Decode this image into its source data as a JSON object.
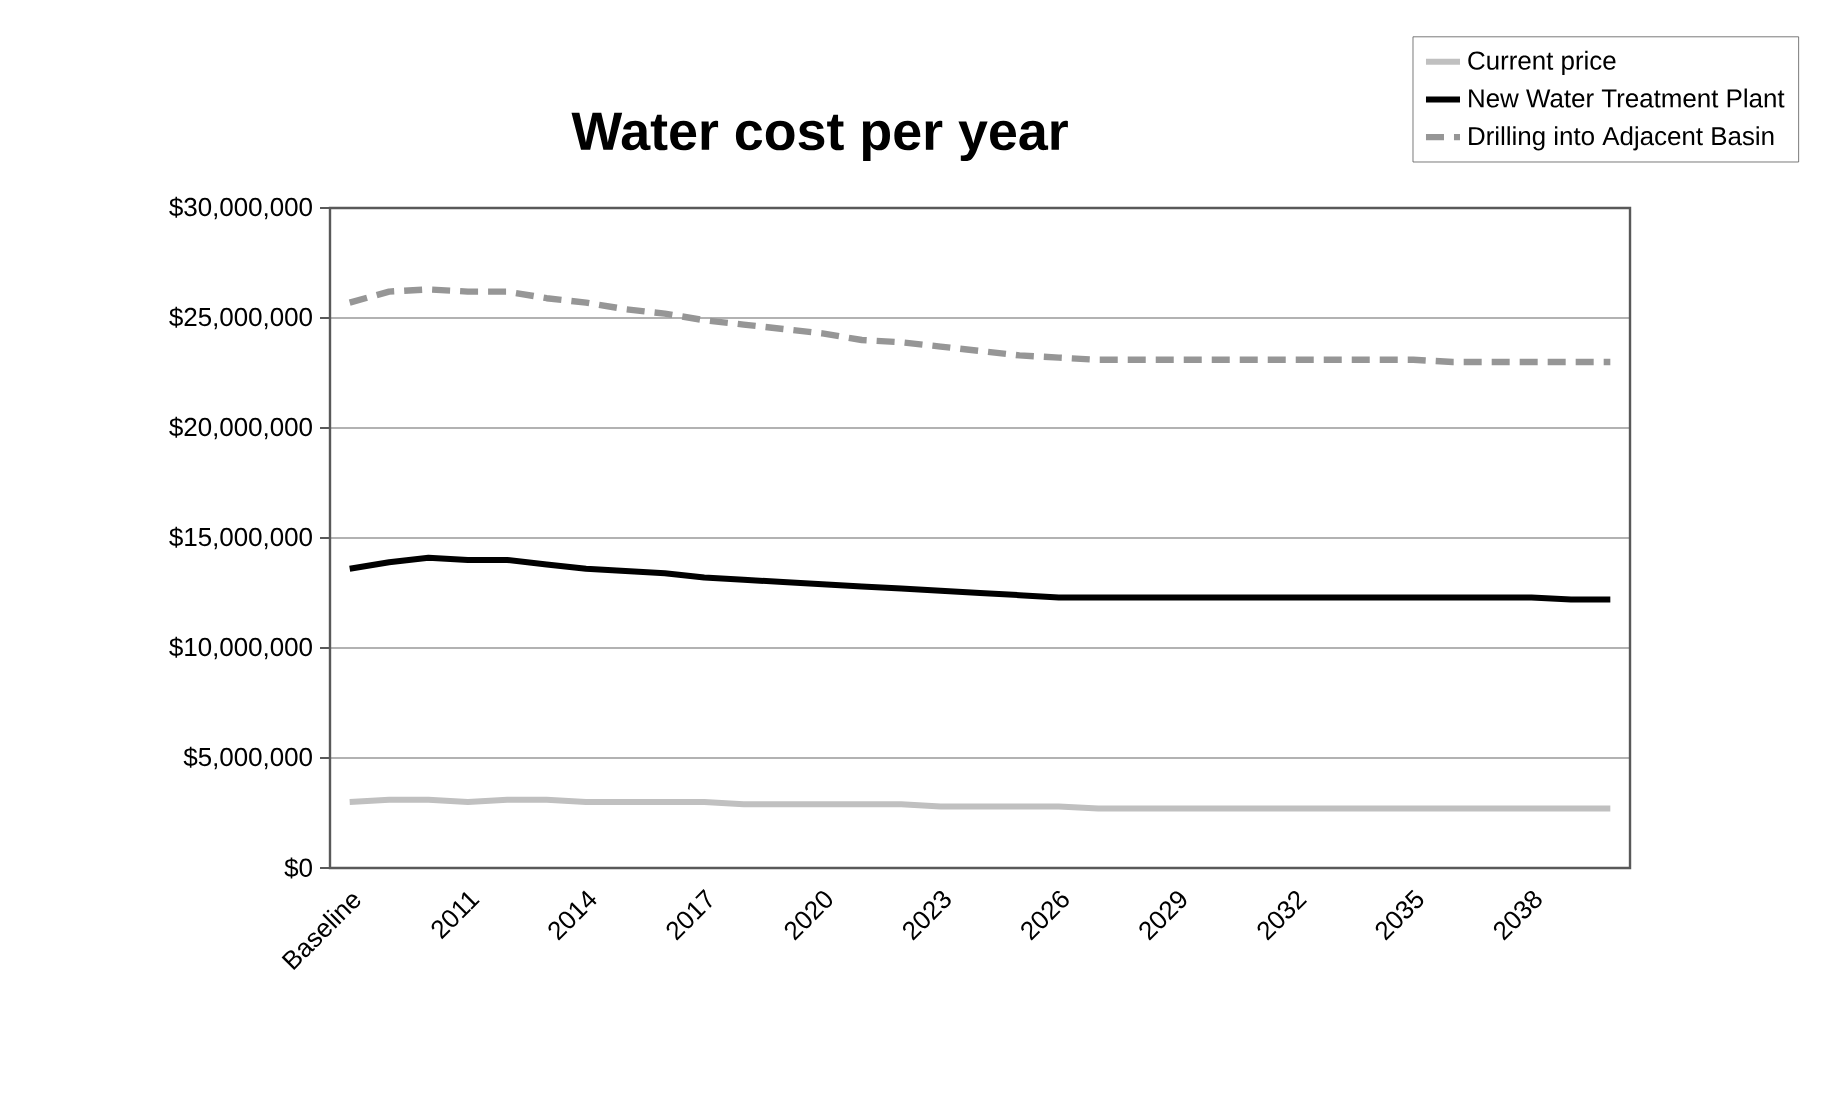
{
  "chart_data": {
    "type": "line",
    "title": "Water cost per year",
    "categories": [
      "Baseline",
      null,
      null,
      "2011",
      null,
      null,
      "2014",
      null,
      null,
      "2017",
      null,
      null,
      "2020",
      null,
      null,
      "2023",
      null,
      null,
      "2026",
      null,
      null,
      "2029",
      null,
      null,
      "2032",
      null,
      null,
      "2035",
      null,
      null,
      "2038",
      null,
      null
    ],
    "series": [
      {
        "name": "Current price",
        "color": "#c0c0c0",
        "line_style": "solid",
        "values": [
          3000000,
          3100000,
          3100000,
          3000000,
          3100000,
          3100000,
          3000000,
          3000000,
          3000000,
          3000000,
          2900000,
          2900000,
          2900000,
          2900000,
          2900000,
          2800000,
          2800000,
          2800000,
          2800000,
          2700000,
          2700000,
          2700000,
          2700000,
          2700000,
          2700000,
          2700000,
          2700000,
          2700000,
          2700000,
          2700000,
          2700000,
          2700000,
          2700000
        ]
      },
      {
        "name": "New Water Treatment Plant",
        "color": "#000000",
        "line_style": "solid",
        "values": [
          13600000,
          13900000,
          14100000,
          14000000,
          14000000,
          13800000,
          13600000,
          13500000,
          13400000,
          13200000,
          13100000,
          13000000,
          12900000,
          12800000,
          12700000,
          12600000,
          12500000,
          12400000,
          12300000,
          12300000,
          12300000,
          12300000,
          12300000,
          12300000,
          12300000,
          12300000,
          12300000,
          12300000,
          12300000,
          12300000,
          12300000,
          12200000,
          12200000
        ]
      },
      {
        "name": "Drilling into Adjacent Basin",
        "color": "#969696",
        "line_style": "dashed",
        "values": [
          25700000,
          26200000,
          26300000,
          26200000,
          26200000,
          25900000,
          25700000,
          25400000,
          25200000,
          24900000,
          24700000,
          24500000,
          24300000,
          24000000,
          23900000,
          23700000,
          23500000,
          23300000,
          23200000,
          23100000,
          23100000,
          23100000,
          23100000,
          23100000,
          23100000,
          23100000,
          23100000,
          23100000,
          23000000,
          23000000,
          23000000,
          23000000,
          23000000
        ]
      }
    ],
    "ylim": [
      0,
      30000000
    ],
    "yticks": [
      {
        "value": 0,
        "label": "$0"
      },
      {
        "value": 5000000,
        "label": "$5,000,000"
      },
      {
        "value": 10000000,
        "label": "$10,000,000"
      },
      {
        "value": 15000000,
        "label": "$15,000,000"
      },
      {
        "value": 20000000,
        "label": "$20,000,000"
      },
      {
        "value": 25000000,
        "label": "$25,000,000"
      },
      {
        "value": 30000000,
        "label": "$30,000,000"
      }
    ],
    "grid": "y",
    "legend": "top right"
  }
}
